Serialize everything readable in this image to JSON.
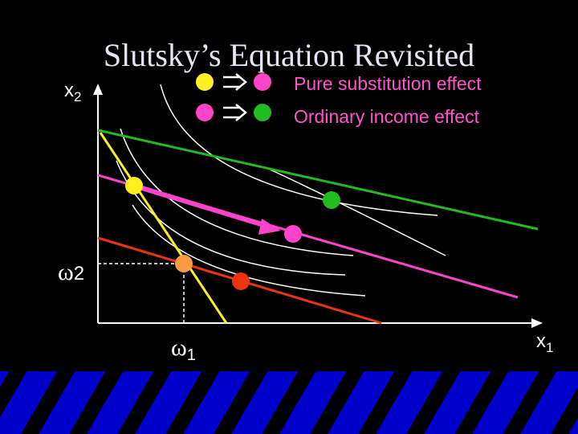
{
  "title": "Slutsky’s Equation Revisited",
  "axes": {
    "y_label": {
      "base": "x",
      "sub": "2"
    },
    "x_label": {
      "base": "x",
      "sub": "1"
    },
    "endowment_y": {
      "base": "ω",
      "sub": "2"
    },
    "endowment_x": {
      "base": "ω",
      "sub": "1"
    }
  },
  "legend": [
    "Pure substitution effect",
    "Ordinary income effect"
  ]
}
